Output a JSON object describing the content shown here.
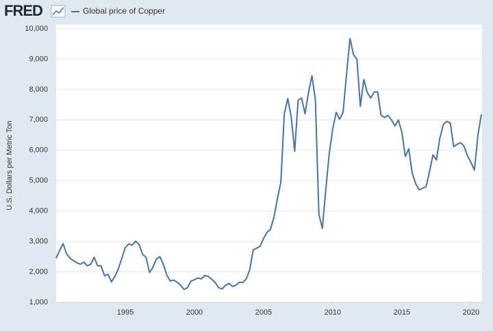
{
  "logo": "FRED",
  "chart_data": {
    "type": "line",
    "y_label": "U.S. Dollars per Metric Ton",
    "xlim": [
      1990,
      2020.75
    ],
    "xticks": [
      1995,
      2000,
      2005,
      2010,
      2015,
      2020
    ],
    "ylim": [
      1000,
      10000
    ],
    "yticks": [
      {
        "value": 1000,
        "label": "1,000"
      },
      {
        "value": 2000,
        "label": "2,000"
      },
      {
        "value": 3000,
        "label": "3,000"
      },
      {
        "value": 4000,
        "label": "4,000"
      },
      {
        "value": 5000,
        "label": "5,000"
      },
      {
        "value": 6000,
        "label": "6,000"
      },
      {
        "value": 7000,
        "label": "7,000"
      },
      {
        "value": 8000,
        "label": "8,000"
      },
      {
        "value": 9000,
        "label": "9,000"
      },
      {
        "value": 10000,
        "label": "10,000"
      }
    ],
    "grid": true,
    "x": [
      1990,
      1990.25,
      1990.5,
      1990.75,
      1991,
      1991.25,
      1991.5,
      1991.75,
      1992,
      1992.25,
      1992.5,
      1992.75,
      1993,
      1993.25,
      1993.5,
      1993.75,
      1994,
      1994.25,
      1994.5,
      1994.75,
      1995,
      1995.25,
      1995.5,
      1995.75,
      1996,
      1996.25,
      1996.5,
      1996.75,
      1997,
      1997.25,
      1997.5,
      1997.75,
      1998,
      1998.25,
      1998.5,
      1998.75,
      1999,
      1999.25,
      1999.5,
      1999.75,
      2000,
      2000.25,
      2000.5,
      2000.75,
      2001,
      2001.25,
      2001.5,
      2001.75,
      2002,
      2002.25,
      2002.5,
      2002.75,
      2003,
      2003.25,
      2003.5,
      2003.75,
      2004,
      2004.25,
      2004.5,
      2004.75,
      2005,
      2005.25,
      2005.5,
      2005.75,
      2006,
      2006.25,
      2006.5,
      2006.75,
      2007,
      2007.25,
      2007.5,
      2007.75,
      2008,
      2008.25,
      2008.5,
      2008.75,
      2009,
      2009.25,
      2009.5,
      2009.75,
      2010,
      2010.25,
      2010.5,
      2010.75,
      2011,
      2011.25,
      2011.5,
      2011.75,
      2012,
      2012.25,
      2012.5,
      2012.75,
      2013,
      2013.25,
      2013.5,
      2013.75,
      2014,
      2014.25,
      2014.5,
      2014.75,
      2015,
      2015.25,
      2015.5,
      2015.75,
      2016,
      2016.25,
      2016.5,
      2016.75,
      2017,
      2017.25,
      2017.5,
      2017.75,
      2018,
      2018.25,
      2018.5,
      2018.75,
      2019,
      2019.25,
      2019.5,
      2019.75,
      2020,
      2020.25,
      2020.5,
      2020.75
    ],
    "series": [
      {
        "name": "Global price of Copper",
        "color": "#4572a7",
        "values": [
          2450,
          2700,
          2930,
          2600,
          2450,
          2370,
          2300,
          2250,
          2320,
          2200,
          2250,
          2480,
          2200,
          2200,
          1870,
          1920,
          1670,
          1850,
          2100,
          2450,
          2800,
          2920,
          2880,
          3010,
          2900,
          2580,
          2480,
          1980,
          2150,
          2420,
          2500,
          2250,
          1900,
          1700,
          1730,
          1660,
          1560,
          1420,
          1480,
          1700,
          1740,
          1800,
          1770,
          1880,
          1850,
          1760,
          1650,
          1480,
          1440,
          1560,
          1620,
          1520,
          1560,
          1660,
          1650,
          1770,
          2070,
          2720,
          2780,
          2840,
          3100,
          3300,
          3400,
          3800,
          4400,
          4950,
          7200,
          7700,
          7100,
          5970,
          7650,
          7720,
          7200,
          7900,
          8450,
          7650,
          3900,
          3430,
          4700,
          5900,
          6700,
          7250,
          7020,
          7250,
          8500,
          9680,
          9150,
          9000,
          7450,
          8330,
          7900,
          7720,
          7920,
          7920,
          7150,
          7080,
          7150,
          7000,
          6800,
          7000,
          6600,
          5800,
          6050,
          5250,
          4900,
          4700,
          4750,
          4800,
          5300,
          5850,
          5680,
          6400,
          6850,
          6950,
          6900,
          6120,
          6200,
          6250,
          6130,
          5820,
          5600,
          5350,
          6500,
          7180
        ]
      }
    ]
  }
}
